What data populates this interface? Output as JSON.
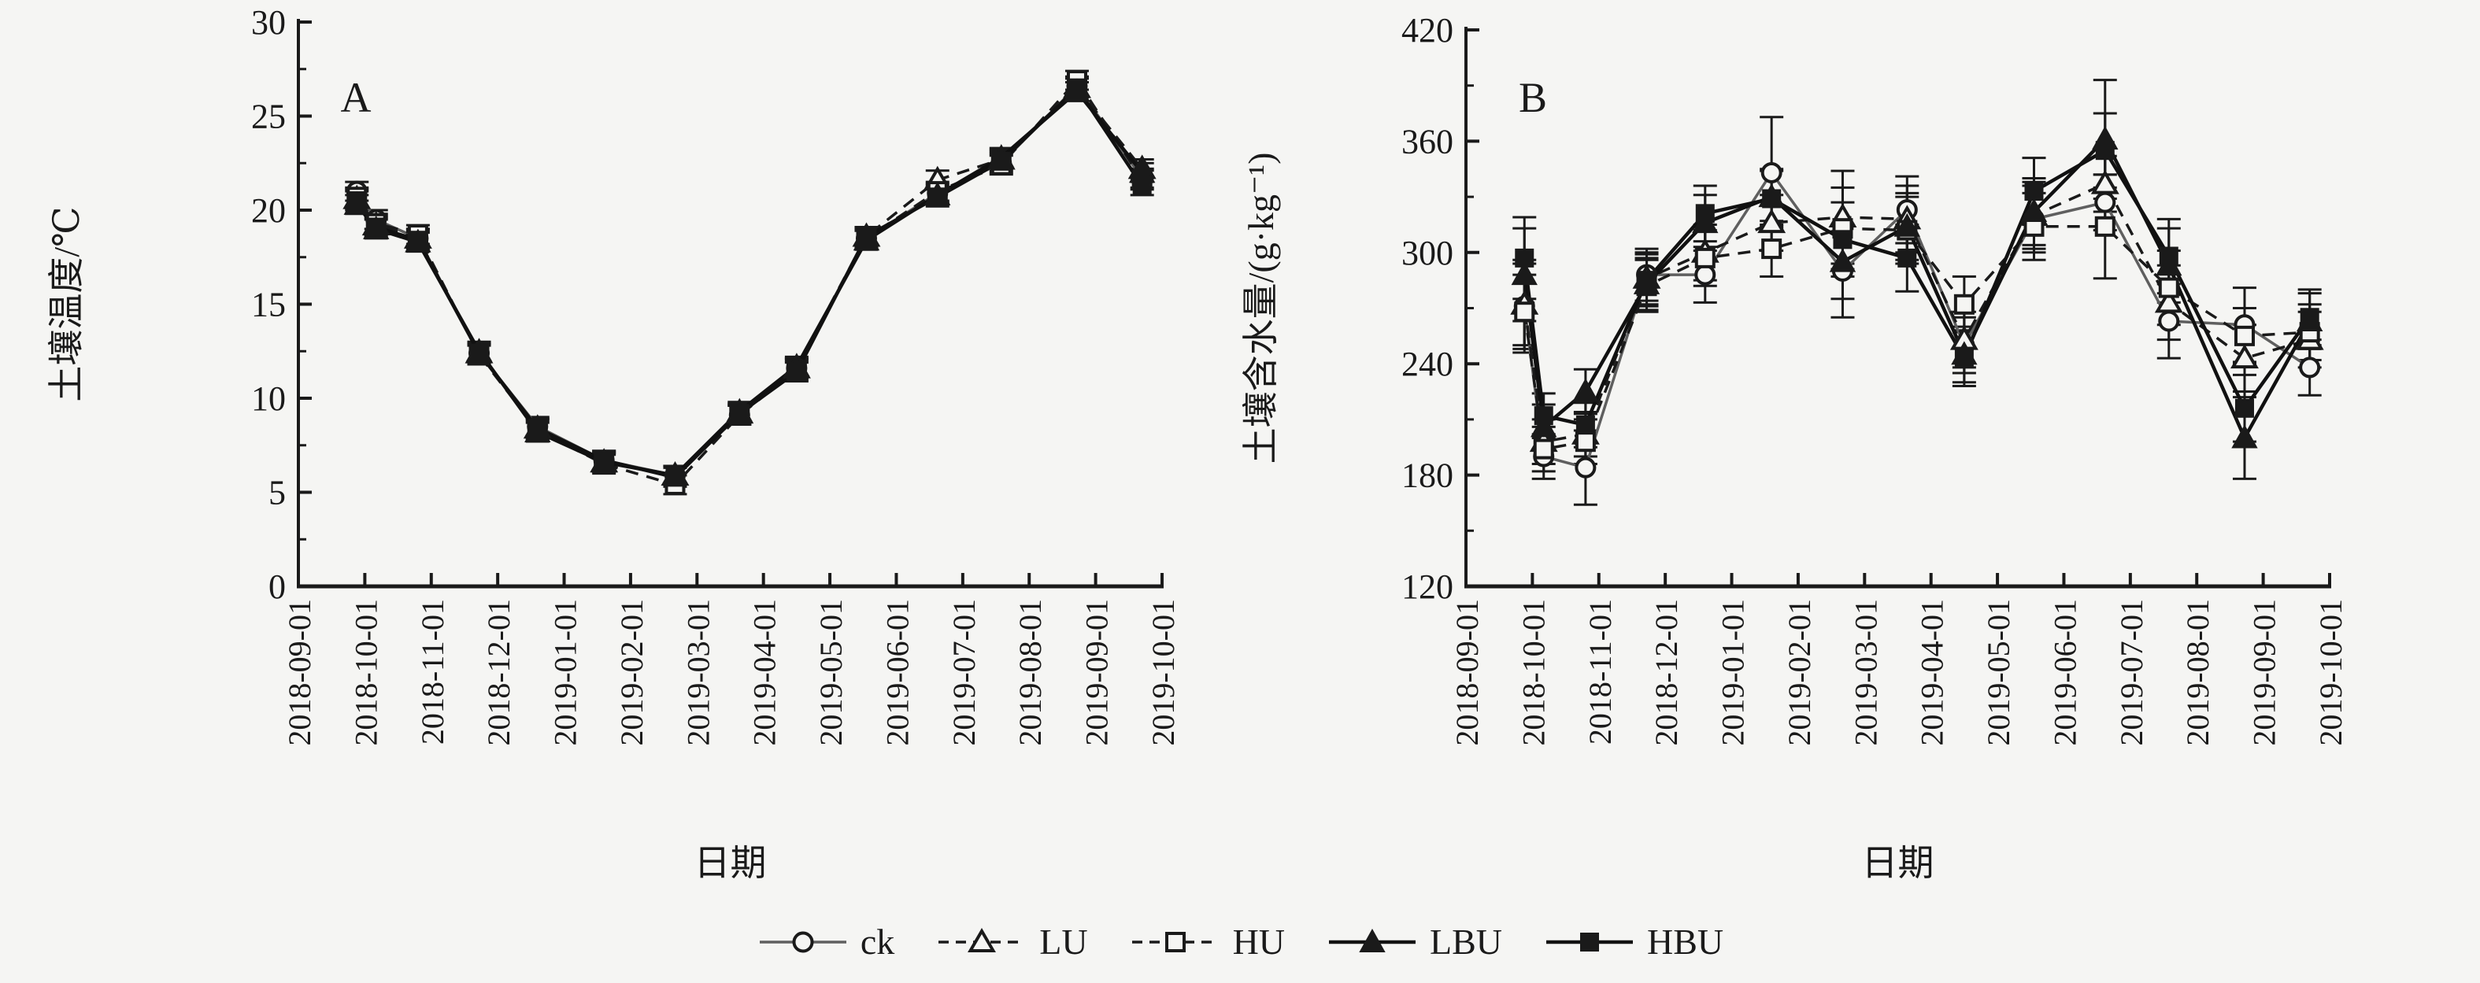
{
  "figure": {
    "background_color": "#f5f5f3",
    "ink_color": "#1a1a1a",
    "ck_line_color": "#5f5f5f"
  },
  "legend": {
    "position": "bottom-center",
    "items": [
      {
        "label": "ck",
        "series": "ck"
      },
      {
        "label": "LU",
        "series": "LU"
      },
      {
        "label": "HU",
        "series": "HU"
      },
      {
        "label": "LBU",
        "series": "LBU"
      },
      {
        "label": "HBU",
        "series": "HBU"
      }
    ]
  },
  "series_styles": {
    "ck": {
      "marker": "open-circle",
      "dash": "none",
      "color": "#5f5f5f",
      "width": 3.5
    },
    "LU": {
      "marker": "open-triangle",
      "dash": "16 11",
      "color": "#1a1a1a",
      "width": 3.5
    },
    "HU": {
      "marker": "open-square",
      "dash": "16 11",
      "color": "#1a1a1a",
      "width": 3.5
    },
    "LBU": {
      "marker": "filled-triangle",
      "dash": "none",
      "color": "#111111",
      "width": 4.5
    },
    "HBU": {
      "marker": "filled-square",
      "dash": "none",
      "color": "#111111",
      "width": 4.5
    }
  },
  "chart_data": [
    {
      "type": "line",
      "panel_label": "A",
      "title": "A",
      "xlabel": "日期",
      "ylabel": "土壤温度/℃",
      "ylim": [
        0,
        30
      ],
      "grid": false,
      "y_tick_values": [
        0,
        5,
        10,
        15,
        20,
        25,
        30
      ],
      "y_tick_labels": [
        "0",
        "5",
        "10",
        "15",
        "20",
        "25",
        "30"
      ],
      "y_minor_step": 2.5,
      "x_tick_labels": [
        "2018-09-01",
        "2018-10-01",
        "2018-11-01",
        "2018-12-01",
        "2019-01-01",
        "2019-02-01",
        "2019-03-01",
        "2019-04-01",
        "2019-05-01",
        "2019-06-01",
        "2019-07-01",
        "2019-08-01",
        "2019-09-01",
        "2019-10-01"
      ],
      "x_months": [
        0.88,
        1.17,
        1.8,
        2.72,
        3.6,
        4.6,
        5.67,
        6.64,
        7.5,
        8.55,
        9.62,
        10.58,
        11.72,
        12.7
      ],
      "series": [
        {
          "name": "ck",
          "values": [
            21.0,
            19.5,
            18.5,
            12.4,
            8.5,
            6.7,
            5.9,
            9.1,
            11.6,
            18.5,
            20.9,
            22.5,
            26.6,
            21.7
          ],
          "errors": 0.5
        },
        {
          "name": "LU",
          "values": [
            20.6,
            19.2,
            18.5,
            12.4,
            8.4,
            6.6,
            5.9,
            9.2,
            11.6,
            18.6,
            21.6,
            22.7,
            26.5,
            22.2
          ],
          "errors": 0.5
        },
        {
          "name": "HU",
          "values": [
            20.7,
            19.3,
            18.7,
            12.3,
            8.3,
            6.5,
            5.4,
            9.1,
            11.5,
            18.5,
            21.0,
            22.4,
            26.9,
            21.6
          ],
          "errors": 0.5
        },
        {
          "name": "LBU",
          "values": [
            20.3,
            19.0,
            18.3,
            12.5,
            8.2,
            6.6,
            5.9,
            9.3,
            11.7,
            18.4,
            20.8,
            22.8,
            26.3,
            22.0
          ],
          "errors": 0.5
        },
        {
          "name": "HBU",
          "values": [
            20.5,
            19.1,
            18.4,
            12.4,
            8.4,
            6.7,
            5.8,
            9.2,
            11.4,
            18.6,
            20.7,
            22.6,
            26.5,
            21.3
          ],
          "errors": 0.5
        }
      ]
    },
    {
      "type": "line",
      "panel_label": "B",
      "title": "B",
      "xlabel": "日期",
      "ylabel": "土壤含水量/(g·kg⁻¹)",
      "ylim": [
        120,
        420
      ],
      "grid": false,
      "y_tick_values": [
        120,
        180,
        240,
        300,
        360,
        420
      ],
      "y_tick_labels": [
        "120",
        "180",
        "240",
        "300",
        "360",
        "420"
      ],
      "y_minor_step": 30,
      "x_tick_labels": [
        "2018-09-01",
        "2018-10-01",
        "2018-11-01",
        "2018-12-01",
        "2019-01-01",
        "2019-02-01",
        "2019-03-01",
        "2019-04-01",
        "2019-05-01",
        "2019-06-01",
        "2019-07-01",
        "2019-08-01",
        "2019-09-01",
        "2019-10-01"
      ],
      "x_months": [
        0.88,
        1.17,
        1.8,
        2.72,
        3.6,
        4.6,
        5.67,
        6.64,
        7.5,
        8.55,
        9.62,
        10.58,
        11.72,
        12.7
      ],
      "series": [
        {
          "name": "ck",
          "values": [
            271,
            190,
            184,
            288,
            288,
            343,
            290,
            323,
            250,
            318,
            327,
            263,
            261,
            238
          ],
          "errors": [
            25,
            12,
            20,
            14,
            15,
            30,
            25,
            18,
            15,
            18,
            15,
            20,
            20,
            15
          ]
        },
        {
          "name": "LU",
          "values": [
            272,
            198,
            202,
            286,
            300,
            316,
            319,
            318,
            253,
            320,
            337,
            273,
            243,
            253
          ],
          "errors": [
            22,
            12,
            12,
            14,
            15,
            15,
            25,
            18,
            15,
            18,
            15,
            20,
            18,
            15
          ]
        },
        {
          "name": "HU",
          "values": [
            268,
            194,
            198,
            282,
            297,
            302,
            313,
            312,
            272,
            314,
            314,
            281,
            255,
            257
          ],
          "errors": [
            20,
            12,
            12,
            14,
            15,
            15,
            22,
            18,
            15,
            18,
            28,
            20,
            15,
            15
          ]
        },
        {
          "name": "LBU",
          "values": [
            288,
            206,
            225,
            283,
            316,
            330,
            295,
            314,
            245,
            322,
            361,
            293,
            200,
            263
          ],
          "errors": [
            25,
            12,
            12,
            14,
            15,
            15,
            20,
            18,
            15,
            18,
            32,
            20,
            22,
            15
          ]
        },
        {
          "name": "HBU",
          "values": [
            297,
            212,
            207,
            285,
            321,
            329,
            307,
            297,
            243,
            333,
            355,
            298,
            216,
            265
          ],
          "errors": [
            22,
            12,
            12,
            14,
            15,
            15,
            20,
            18,
            15,
            18,
            20,
            20,
            18,
            15
          ]
        }
      ]
    }
  ]
}
